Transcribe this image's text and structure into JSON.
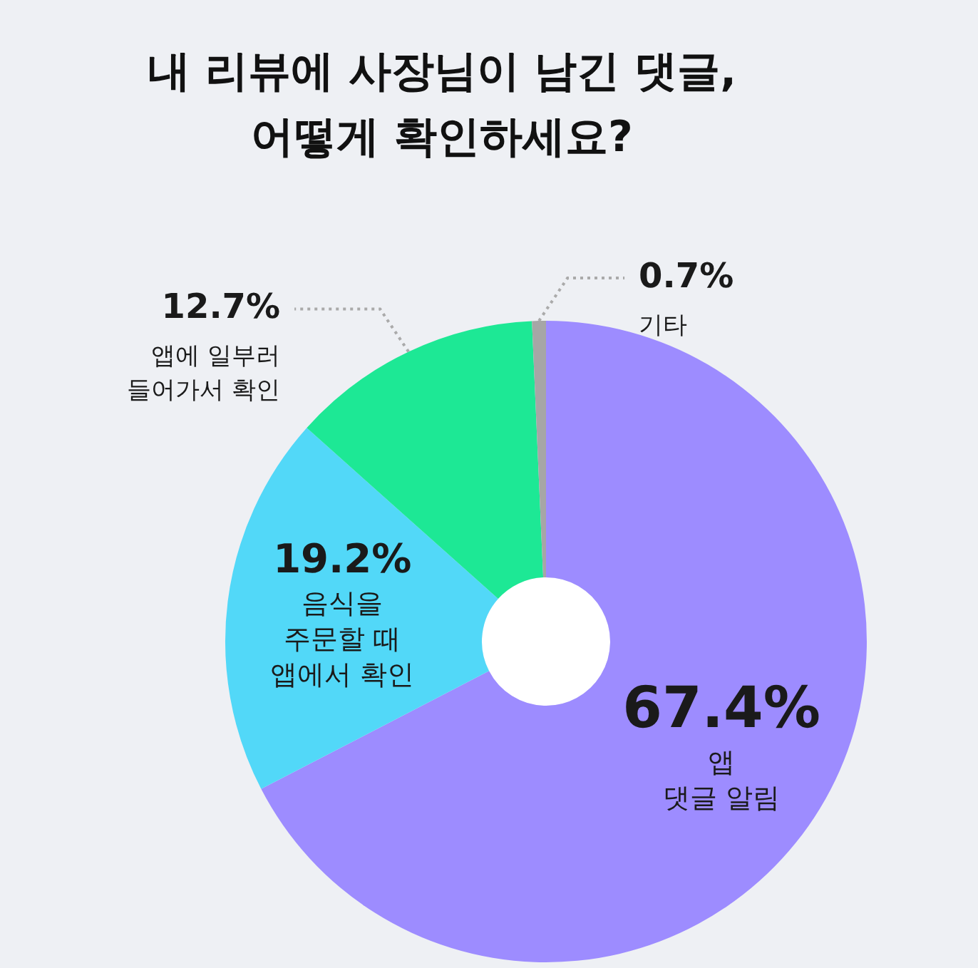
{
  "chart_data": {
    "type": "donut",
    "title": "내 리뷰에 사장님이 남긴 댓글,\n어떻게 확인하세요?",
    "categories": [
      "앱\n댓글 알림",
      "음식을\n주문할 때\n앱에서 확인",
      "앱에 일부러\n들어가서 확인",
      "기타"
    ],
    "values": [
      67.4,
      19.2,
      12.7,
      0.7
    ],
    "colors": [
      "#9d8cff",
      "#52d8f8",
      "#1de895",
      "#a6a6a6"
    ],
    "value_labels": [
      "67.4%",
      "19.2%",
      "12.7%",
      "0.7%"
    ],
    "legend": false
  }
}
